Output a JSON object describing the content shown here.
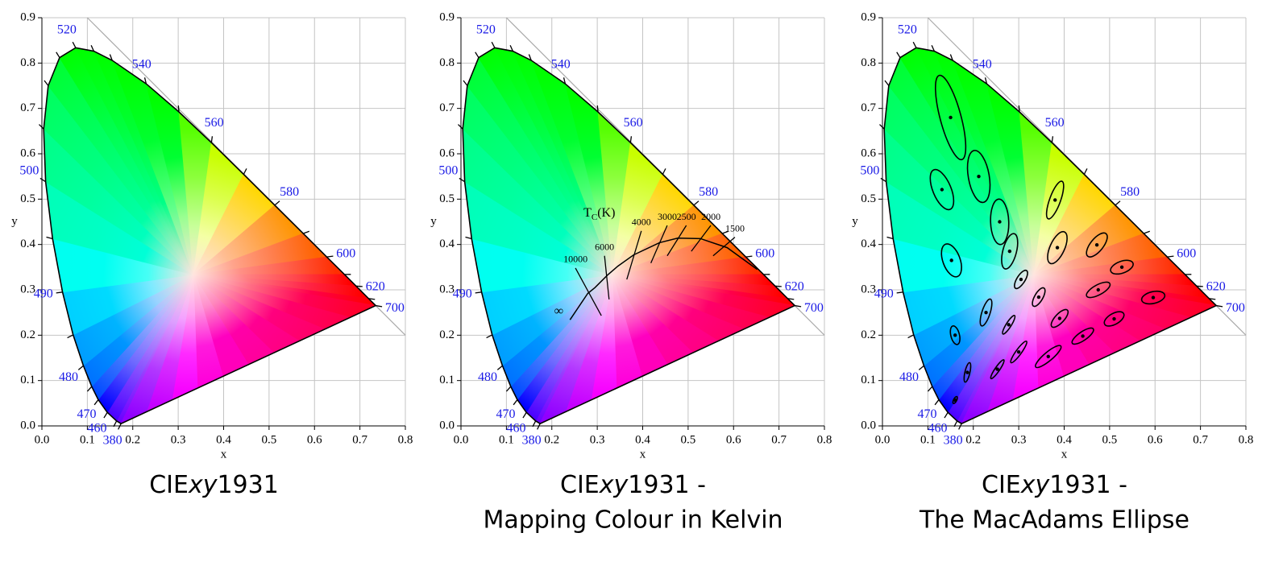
{
  "chart_data": [
    {
      "type": "chromaticity",
      "title": {
        "prefix": "CIE",
        "italic": "xy",
        "suffix": "1931"
      },
      "xlabel": "x",
      "ylabel": "y",
      "xlim": [
        0,
        0.8
      ],
      "ylim": [
        0,
        0.9
      ],
      "xticks": [
        {
          "value": 0,
          "label": "0.0"
        },
        0.1,
        0.2,
        0.3,
        0.4,
        0.5,
        0.6,
        0.7,
        0.8
      ],
      "yticks": [
        {
          "value": 0,
          "label": "0.0"
        },
        0.1,
        0.2,
        0.3,
        0.4,
        0.5,
        0.6,
        0.7,
        0.8,
        0.9
      ],
      "grid": true,
      "label_color": "#1a1ae6",
      "locus": {
        "wavelengths": [
          380,
          440,
          460,
          470,
          475,
          480,
          485,
          490,
          495,
          500,
          505,
          510,
          515,
          520,
          525,
          530,
          540,
          550,
          560,
          570,
          580,
          590,
          600,
          610,
          620,
          640,
          700
        ],
        "x": [
          0.1741,
          0.1644,
          0.144,
          0.1241,
          0.1096,
          0.0913,
          0.0687,
          0.0454,
          0.0235,
          0.0082,
          0.0039,
          0.0139,
          0.0389,
          0.0743,
          0.1142,
          0.1547,
          0.2296,
          0.3016,
          0.3731,
          0.4441,
          0.5125,
          0.5752,
          0.627,
          0.6658,
          0.6915,
          0.719,
          0.7347
        ],
        "y": [
          0.005,
          0.0109,
          0.0297,
          0.0578,
          0.0868,
          0.1327,
          0.2007,
          0.295,
          0.4127,
          0.5384,
          0.6548,
          0.7502,
          0.812,
          0.8338,
          0.8262,
          0.8059,
          0.7543,
          0.6923,
          0.6245,
          0.5547,
          0.4866,
          0.4242,
          0.3725,
          0.334,
          0.3083,
          0.2809,
          0.2653
        ]
      },
      "locus_labels": [
        380,
        460,
        470,
        480,
        490,
        500,
        520,
        540,
        560,
        580,
        600,
        620,
        700
      ]
    },
    {
      "type": "chromaticity",
      "title": {
        "prefix": "CIE",
        "italic": "xy",
        "suffix": "1931 -"
      },
      "subtitle": "Mapping Colour in Kelvin",
      "xlabel": "x",
      "ylabel": "y",
      "xlim": [
        0,
        0.8
      ],
      "ylim": [
        0,
        0.9
      ],
      "xticks": [
        {
          "value": 0,
          "label": "0.0"
        },
        0.1,
        0.2,
        0.3,
        0.4,
        0.5,
        0.6,
        0.7,
        0.8
      ],
      "yticks": [
        {
          "value": 0,
          "label": "0.0"
        },
        0.1,
        0.2,
        0.3,
        0.4,
        0.5,
        0.6,
        0.7,
        0.8,
        0.9
      ],
      "grid": true,
      "label_color": "#1a1ae6",
      "locus": {
        "wavelengths": [
          380,
          440,
          460,
          470,
          475,
          480,
          485,
          490,
          495,
          500,
          505,
          510,
          515,
          520,
          525,
          530,
          540,
          550,
          560,
          570,
          580,
          590,
          600,
          610,
          620,
          640,
          700
        ],
        "x": [
          0.1741,
          0.1644,
          0.144,
          0.1241,
          0.1096,
          0.0913,
          0.0687,
          0.0454,
          0.0235,
          0.0082,
          0.0039,
          0.0139,
          0.0389,
          0.0743,
          0.1142,
          0.1547,
          0.2296,
          0.3016,
          0.3731,
          0.4441,
          0.5125,
          0.5752,
          0.627,
          0.6658,
          0.6915,
          0.719,
          0.7347
        ],
        "y": [
          0.005,
          0.0109,
          0.0297,
          0.0578,
          0.0868,
          0.1327,
          0.2007,
          0.295,
          0.4127,
          0.5384,
          0.6548,
          0.7502,
          0.812,
          0.8338,
          0.8262,
          0.8059,
          0.7543,
          0.6923,
          0.6245,
          0.5547,
          0.4866,
          0.4242,
          0.3725,
          0.334,
          0.3083,
          0.2809,
          0.2653
        ]
      },
      "locus_labels": [
        380,
        460,
        470,
        480,
        490,
        500,
        520,
        540,
        560,
        580,
        600,
        620,
        700
      ],
      "planckian": {
        "x": [
          0.24,
          0.279,
          0.295,
          0.322,
          0.345,
          0.38,
          0.437,
          0.477,
          0.527,
          0.586,
          0.652
        ],
        "y": [
          0.234,
          0.292,
          0.305,
          0.332,
          0.352,
          0.377,
          0.404,
          0.414,
          0.413,
          0.393,
          0.345
        ]
      },
      "infinity_label": "∞",
      "temperature_label": {
        "symbol": "T",
        "subscript": "C",
        "unit": "(K)"
      },
      "isotherms": [
        {
          "temperature": 10000,
          "x": [
            0.252,
            0.309
          ],
          "y": [
            0.348,
            0.243
          ]
        },
        {
          "temperature": 6000,
          "x": [
            0.316,
            0.326
          ],
          "y": [
            0.375,
            0.279
          ]
        },
        {
          "temperature": 4000,
          "x": [
            0.397,
            0.365
          ],
          "y": [
            0.43,
            0.323
          ]
        },
        {
          "temperature": 3000,
          "x": [
            0.454,
            0.418
          ],
          "y": [
            0.442,
            0.359
          ]
        },
        {
          "temperature": 2500,
          "x": [
            0.496,
            0.454
          ],
          "y": [
            0.442,
            0.375
          ]
        },
        {
          "temperature": 2000,
          "x": [
            0.55,
            0.507
          ],
          "y": [
            0.442,
            0.385
          ]
        },
        {
          "temperature": 1500,
          "x": [
            0.603,
            0.555
          ],
          "y": [
            0.416,
            0.375
          ]
        }
      ]
    },
    {
      "type": "chromaticity",
      "title": {
        "prefix": "CIE",
        "italic": "xy",
        "suffix": "1931 -"
      },
      "subtitle": "The MacAdams Ellipse",
      "xlabel": "x",
      "ylabel": "y",
      "xlim": [
        0,
        0.8
      ],
      "ylim": [
        0,
        0.9
      ],
      "xticks": [
        {
          "value": 0,
          "label": "0.0"
        },
        0.1,
        0.2,
        0.3,
        0.4,
        0.5,
        0.6,
        0.7,
        0.8
      ],
      "yticks": [
        {
          "value": 0,
          "label": "0.0"
        },
        0.1,
        0.2,
        0.3,
        0.4,
        0.5,
        0.6,
        0.7,
        0.8,
        0.9
      ],
      "grid": true,
      "label_color": "#1a1ae6",
      "locus": {
        "wavelengths": [
          380,
          440,
          460,
          470,
          475,
          480,
          485,
          490,
          495,
          500,
          505,
          510,
          515,
          520,
          525,
          530,
          540,
          550,
          560,
          570,
          580,
          590,
          600,
          610,
          620,
          640,
          700
        ],
        "x": [
          0.1741,
          0.1644,
          0.144,
          0.1241,
          0.1096,
          0.0913,
          0.0687,
          0.0454,
          0.0235,
          0.0082,
          0.0039,
          0.0139,
          0.0389,
          0.0743,
          0.1142,
          0.1547,
          0.2296,
          0.3016,
          0.3731,
          0.4441,
          0.5125,
          0.5752,
          0.627,
          0.6658,
          0.6915,
          0.719,
          0.7347
        ],
        "y": [
          0.005,
          0.0109,
          0.0297,
          0.0578,
          0.0868,
          0.1327,
          0.2007,
          0.295,
          0.4127,
          0.5384,
          0.6548,
          0.7502,
          0.812,
          0.8338,
          0.8262,
          0.8059,
          0.7543,
          0.6923,
          0.6245,
          0.5547,
          0.4866,
          0.4242,
          0.3725,
          0.334,
          0.3083,
          0.2809,
          0.2653
        ]
      },
      "locus_labels": [
        380,
        460,
        470,
        480,
        490,
        500,
        520,
        540,
        560,
        580,
        600,
        620,
        700
      ],
      "ellipses": {
        "x": [
          0.16,
          0.187,
          0.253,
          0.15,
          0.131,
          0.212,
          0.258,
          0.152,
          0.28,
          0.38,
          0.16,
          0.228,
          0.305,
          0.385,
          0.472,
          0.527,
          0.475,
          0.51,
          0.596,
          0.344,
          0.39,
          0.441,
          0.278,
          0.3,
          0.365
        ],
        "y": [
          0.057,
          0.118,
          0.125,
          0.68,
          0.521,
          0.55,
          0.45,
          0.365,
          0.385,
          0.498,
          0.2,
          0.25,
          0.323,
          0.393,
          0.399,
          0.35,
          0.3,
          0.236,
          0.283,
          0.284,
          0.237,
          0.198,
          0.223,
          0.163,
          0.153
        ],
        "a": [
          0.0085,
          0.022,
          0.025,
          0.096,
          0.047,
          0.058,
          0.05,
          0.038,
          0.04,
          0.044,
          0.021,
          0.031,
          0.023,
          0.038,
          0.032,
          0.026,
          0.029,
          0.024,
          0.026,
          0.023,
          0.025,
          0.028,
          0.024,
          0.029,
          0.036
        ],
        "b": [
          0.0035,
          0.0055,
          0.005,
          0.023,
          0.02,
          0.023,
          0.02,
          0.019,
          0.015,
          0.012,
          0.0095,
          0.009,
          0.009,
          0.016,
          0.014,
          0.013,
          0.011,
          0.012,
          0.013,
          0.009,
          0.01,
          0.0095,
          0.0055,
          0.006,
          0.0095
        ],
        "angle": [
          62.5,
          77,
          55.5,
          105,
          112.5,
          100,
          92,
          110,
          75.5,
          70,
          104,
          72,
          58,
          65.5,
          51,
          20,
          28.5,
          29.5,
          13,
          60,
          47,
          34.5,
          57.5,
          54,
          40
        ]
      }
    }
  ]
}
